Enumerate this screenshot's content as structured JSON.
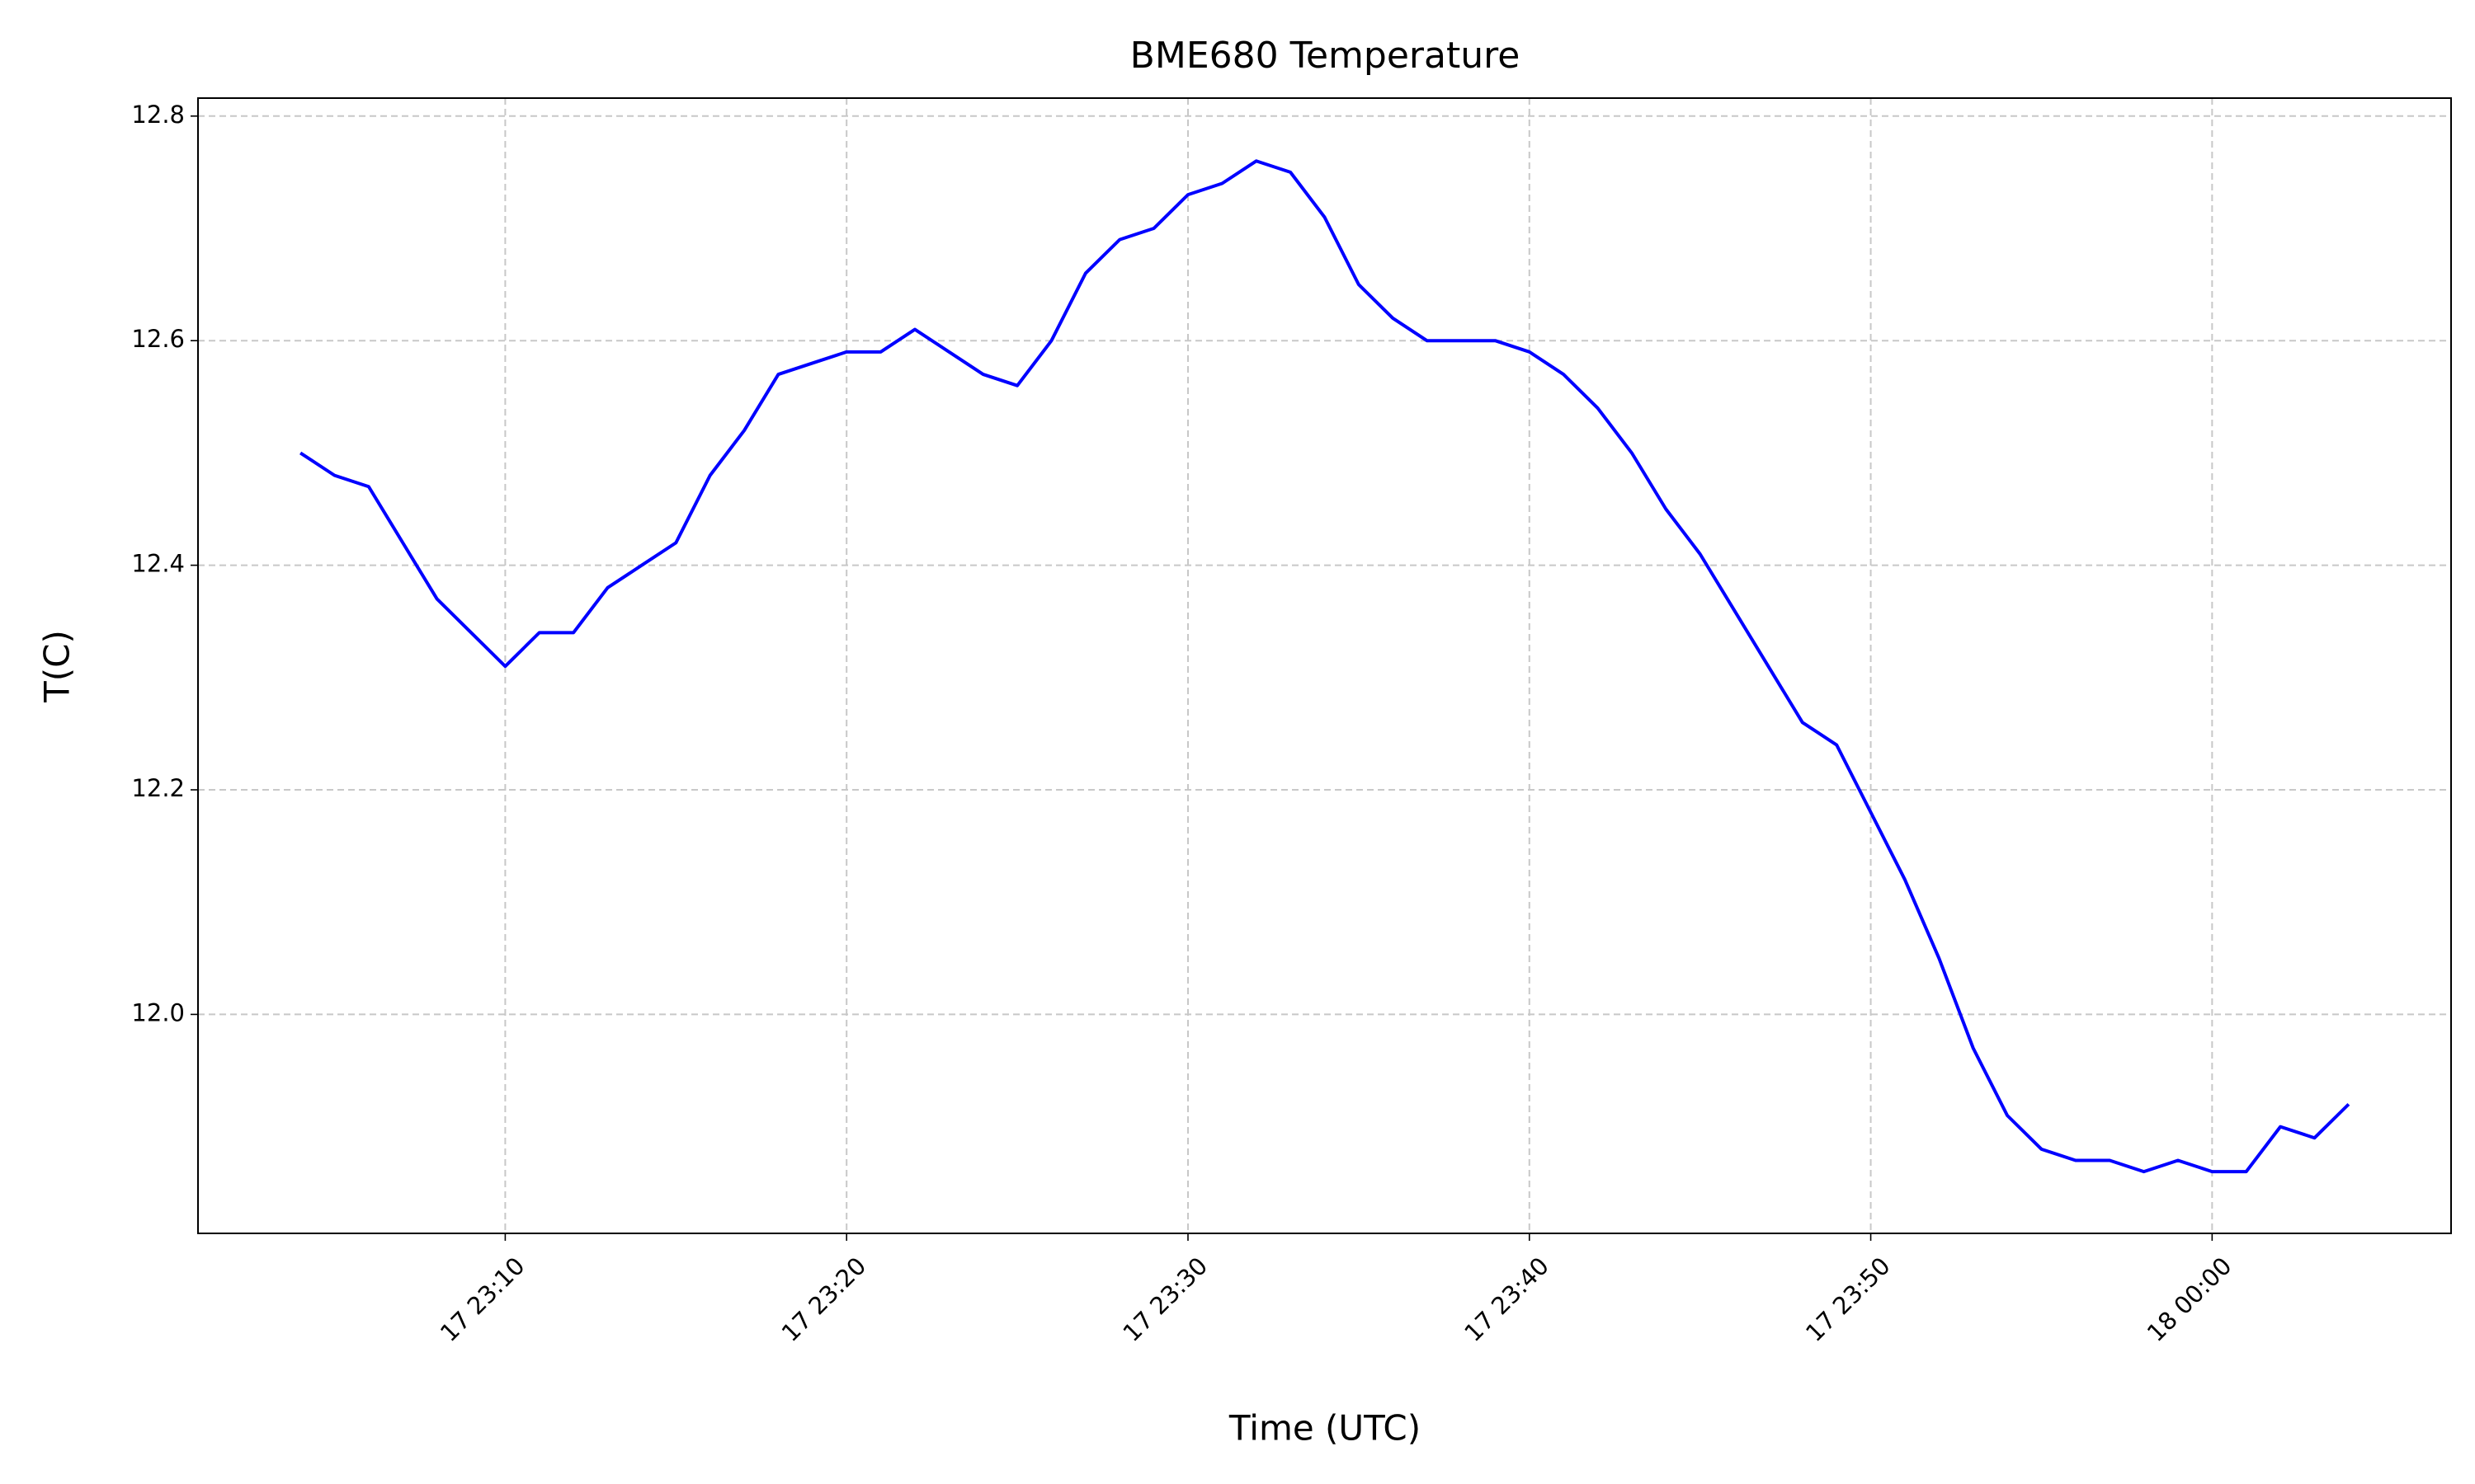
{
  "chart_data": {
    "type": "line",
    "title": "BME680 Temperature",
    "xlabel": "Time (UTC)",
    "ylabel": "T(C)",
    "x": [
      "17 23:04",
      "17 23:05",
      "17 23:06",
      "17 23:07",
      "17 23:08",
      "17 23:09",
      "17 23:10",
      "17 23:11",
      "17 23:12",
      "17 23:13",
      "17 23:14",
      "17 23:15",
      "17 23:16",
      "17 23:17",
      "17 23:18",
      "17 23:19",
      "17 23:20",
      "17 23:21",
      "17 23:22",
      "17 23:23",
      "17 23:24",
      "17 23:25",
      "17 23:26",
      "17 23:27",
      "17 23:28",
      "17 23:29",
      "17 23:30",
      "17 23:31",
      "17 23:32",
      "17 23:33",
      "17 23:34",
      "17 23:35",
      "17 23:36",
      "17 23:37",
      "17 23:38",
      "17 23:39",
      "17 23:40",
      "17 23:41",
      "17 23:42",
      "17 23:43",
      "17 23:44",
      "17 23:45",
      "17 23:46",
      "17 23:47",
      "17 23:48",
      "17 23:49",
      "17 23:50",
      "17 23:51",
      "17 23:52",
      "17 23:53",
      "17 23:54",
      "17 23:55",
      "17 23:56",
      "17 23:57",
      "17 23:58",
      "17 23:59",
      "18 00:00",
      "18 00:01",
      "18 00:02",
      "18 00:03",
      "18 00:04"
    ],
    "series": [
      {
        "name": "T(C)",
        "color": "#0000ff",
        "values": [
          12.5,
          12.48,
          12.47,
          12.42,
          12.37,
          12.34,
          12.31,
          12.34,
          12.34,
          12.38,
          12.4,
          12.42,
          12.48,
          12.52,
          12.57,
          12.58,
          12.59,
          12.59,
          12.61,
          12.59,
          12.57,
          12.56,
          12.6,
          12.66,
          12.69,
          12.7,
          12.73,
          12.74,
          12.76,
          12.75,
          12.71,
          12.65,
          12.62,
          12.6,
          12.6,
          12.6,
          12.59,
          12.57,
          12.54,
          12.5,
          12.45,
          12.41,
          12.36,
          12.31,
          12.26,
          12.24,
          12.18,
          12.12,
          12.05,
          11.97,
          11.91,
          11.88,
          11.87,
          11.87,
          11.86,
          11.87,
          11.86,
          11.86,
          11.9,
          11.89,
          11.92
        ]
      }
    ],
    "xlim": [
      "17 23:01",
      "18 00:07"
    ],
    "xticks": [
      "17 23:10",
      "17 23:20",
      "17 23:30",
      "17 23:40",
      "17 23:50",
      "18 00:00"
    ],
    "ylim": [
      11.805,
      12.816
    ],
    "yticks": [
      {
        "value": 12,
        "label": "12.0"
      },
      12.2,
      12.4,
      12.6,
      12.8
    ],
    "grid": true
  }
}
